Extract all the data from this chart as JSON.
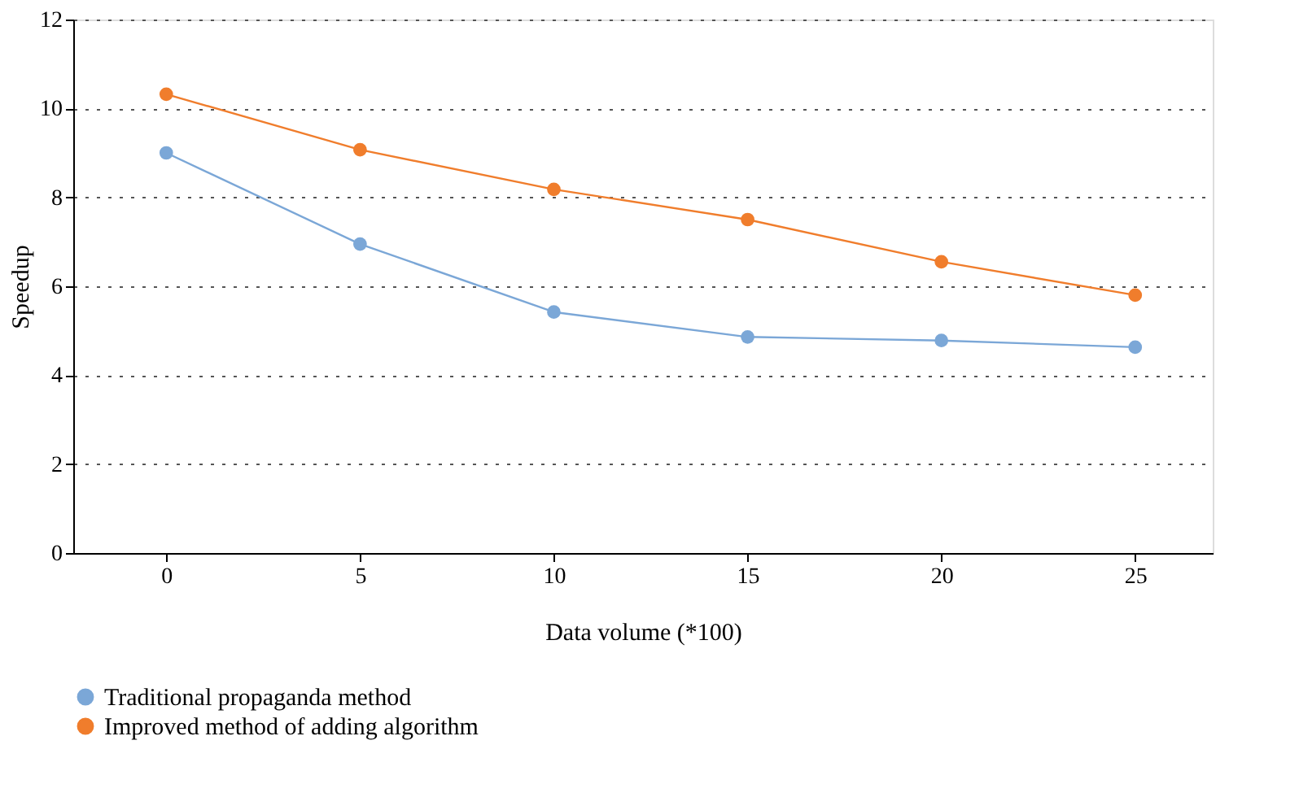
{
  "chart_data": {
    "type": "line",
    "xlabel": "Data volume (*100)",
    "ylabel": "Speedup",
    "x": [
      0,
      5,
      10,
      15,
      20,
      25
    ],
    "series": [
      {
        "name": "Traditional propaganda method",
        "color": "#7ba7d7",
        "values": [
          9.0,
          6.95,
          5.42,
          4.86,
          4.78,
          4.63
        ]
      },
      {
        "name": "Improved method of adding algorithm",
        "color": "#f07d2c",
        "values": [
          10.32,
          9.07,
          8.18,
          7.5,
          6.55,
          5.8
        ]
      }
    ],
    "xlim": [
      -2.4,
      27
    ],
    "xticks": [
      0,
      5,
      10,
      15,
      20,
      25
    ],
    "ylim": [
      0,
      12
    ],
    "yticks": [
      0,
      2,
      4,
      6,
      8,
      10,
      12
    ],
    "grid": "y",
    "legend": "bottom left",
    "marker": "circle",
    "line_style": "solid"
  }
}
